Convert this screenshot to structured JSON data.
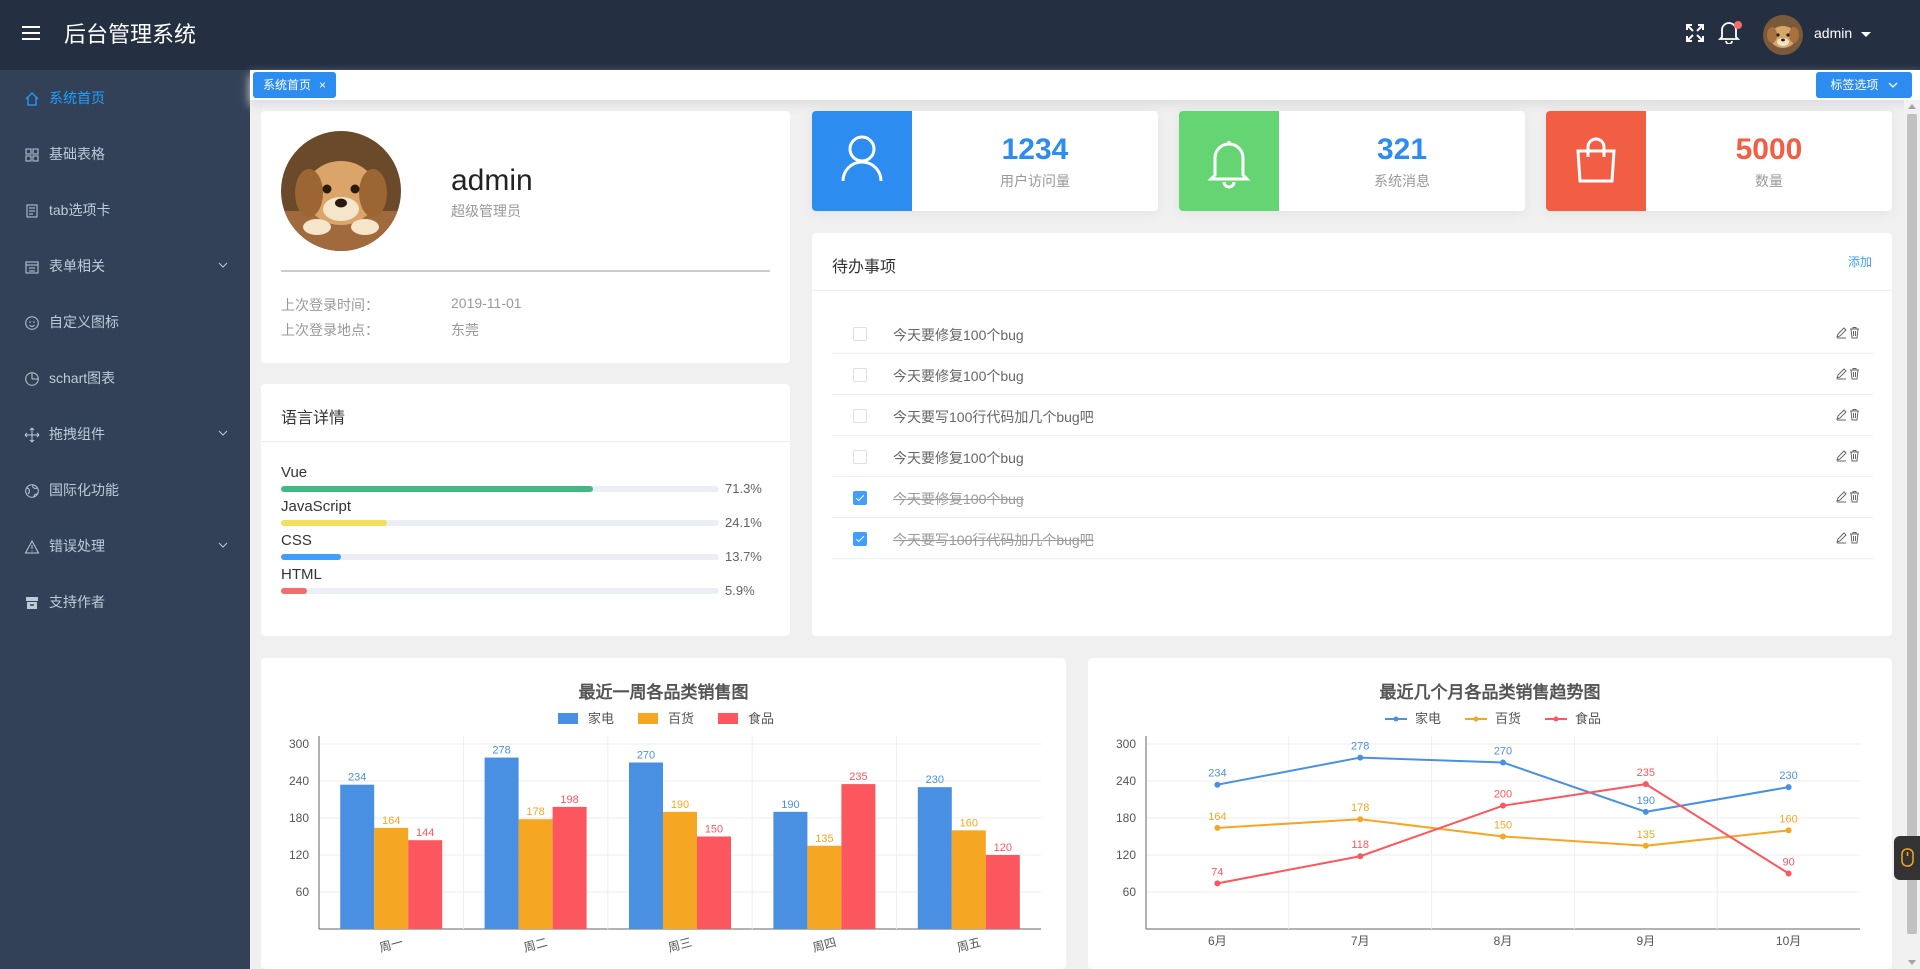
{
  "header": {
    "title": "后台管理系统",
    "username": "admin"
  },
  "sidebar": {
    "items": [
      {
        "label": "系统首页",
        "icon": "home-icon",
        "active": true,
        "submenu": false
      },
      {
        "label": "基础表格",
        "icon": "grid-icon",
        "active": false,
        "submenu": false
      },
      {
        "label": "tab选项卡",
        "icon": "copy-document-icon",
        "active": false,
        "submenu": false
      },
      {
        "label": "表单相关",
        "icon": "calendar-list-icon",
        "active": false,
        "submenu": true
      },
      {
        "label": "自定义图标",
        "icon": "smile-icon",
        "active": false,
        "submenu": false
      },
      {
        "label": "schart图表",
        "icon": "pie-chart-icon",
        "active": false,
        "submenu": false
      },
      {
        "label": "拖拽组件",
        "icon": "rank-move-icon",
        "active": false,
        "submenu": true
      },
      {
        "label": "国际化功能",
        "icon": "globe-icon",
        "active": false,
        "submenu": false
      },
      {
        "label": "错误处理",
        "icon": "warning-icon",
        "active": false,
        "submenu": true
      },
      {
        "label": "支持作者",
        "icon": "present-icon",
        "active": false,
        "submenu": false
      }
    ]
  },
  "tags": {
    "active_tag": "系统首页",
    "close_glyph": "×",
    "options_label": "标签选项"
  },
  "user_card": {
    "name": "admin",
    "role": "超级管理员",
    "last_login_time_label": "上次登录时间：",
    "last_login_time": "2019-11-01",
    "last_login_place_label": "上次登录地点：",
    "last_login_place": "东莞"
  },
  "languages": {
    "title": "语言详情",
    "items": [
      {
        "name": "Vue",
        "percent": 71.3,
        "label": "71.3%",
        "color": "#42b983"
      },
      {
        "name": "JavaScript",
        "percent": 24.1,
        "label": "24.1%",
        "color": "#f1e05a"
      },
      {
        "name": "CSS",
        "percent": 13.7,
        "label": "13.7%",
        "color": "#409eff"
      },
      {
        "name": "HTML",
        "percent": 5.9,
        "label": "5.9%",
        "color": "#f56c6c"
      }
    ]
  },
  "stats": [
    {
      "value": "1234",
      "label": "用户访问量",
      "color": "#2d8cf0",
      "icon": "user-icon"
    },
    {
      "value": "321",
      "label": "系统消息",
      "color": "#64d572",
      "icon": "bell-icon"
    },
    {
      "value": "5000",
      "label": "数量",
      "color": "#f25e43",
      "icon": "shopping-bag-icon"
    }
  ],
  "todo": {
    "title": "待办事项",
    "add_label": "添加",
    "items": [
      {
        "title": "今天要修复100个bug",
        "done": false
      },
      {
        "title": "今天要修复100个bug",
        "done": false
      },
      {
        "title": "今天要写100行代码加几个bug吧",
        "done": false
      },
      {
        "title": "今天要修复100个bug",
        "done": false
      },
      {
        "title": "今天要修复100个bug",
        "done": true
      },
      {
        "title": "今天要写100行代码加几个bug吧",
        "done": true
      }
    ]
  },
  "chart_data": [
    {
      "type": "bar",
      "title": "最近一周各品类销售图",
      "categories": [
        "周一",
        "周二",
        "周三",
        "周四",
        "周五"
      ],
      "series": [
        {
          "name": "家电",
          "values": [
            234,
            278,
            270,
            190,
            230
          ],
          "color": "#4a90e2"
        },
        {
          "name": "百货",
          "values": [
            164,
            178,
            190,
            135,
            160
          ],
          "color": "#f5a623"
        },
        {
          "name": "食品",
          "values": [
            144,
            198,
            150,
            235,
            120
          ],
          "color": "#fc575e"
        }
      ],
      "yticks": [
        60,
        120,
        180,
        240,
        300
      ],
      "ylim": [
        0,
        300
      ],
      "xlabel": "",
      "ylabel": ""
    },
    {
      "type": "line",
      "title": "最近几个月各品类销售趋势图",
      "categories": [
        "6月",
        "7月",
        "8月",
        "9月",
        "10月"
      ],
      "series": [
        {
          "name": "家电",
          "values": [
            234,
            278,
            270,
            190,
            230
          ],
          "color": "#4a90e2"
        },
        {
          "name": "百货",
          "values": [
            164,
            178,
            150,
            135,
            160
          ],
          "color": "#f5a623"
        },
        {
          "name": "食品",
          "values": [
            74,
            118,
            200,
            235,
            90
          ],
          "color": "#fc575e"
        }
      ],
      "yticks": [
        60,
        120,
        180,
        240,
        300
      ],
      "ylim": [
        0,
        300
      ],
      "xlabel": "",
      "ylabel": ""
    }
  ]
}
